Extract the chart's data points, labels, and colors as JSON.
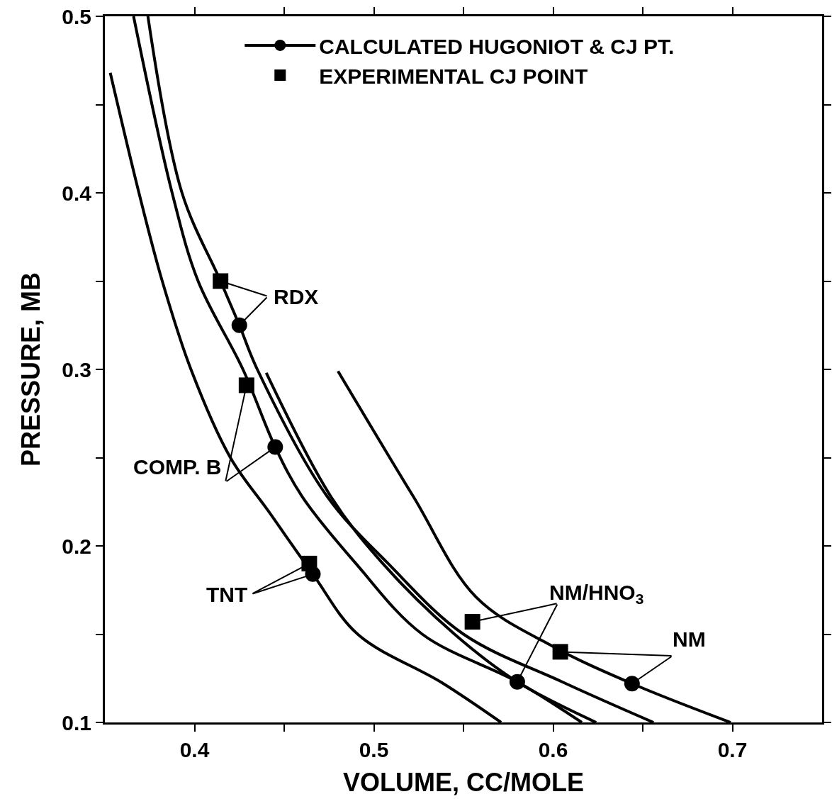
{
  "chart_data": {
    "type": "line",
    "xlabel": "VOLUME, CC/MOLE",
    "ylabel": "PRESSURE, MB",
    "xlim": [
      0.35,
      0.75
    ],
    "ylim": [
      0.1,
      0.5
    ],
    "xticks": [
      0.4,
      {
        "value": 0.45,
        "label": null
      },
      0.5,
      {
        "value": 0.55,
        "label": null
      },
      0.6,
      {
        "value": 0.65,
        "label": null
      },
      0.7
    ],
    "yticks": [
      0.1,
      {
        "value": 0.15,
        "label": null
      },
      0.2,
      {
        "value": 0.25,
        "label": null
      },
      0.3,
      {
        "value": 0.35,
        "label": null
      },
      0.4,
      {
        "value": 0.45,
        "label": null
      },
      0.5
    ],
    "grid": false,
    "legend": "top right",
    "marker": "none",
    "line_style": "solid",
    "series": [
      {
        "type": "line",
        "color": "#000000",
        "x": [
          0.353,
          0.369,
          0.382,
          0.398,
          0.42,
          0.441,
          0.466,
          0.491,
          0.538,
          0.571
        ],
        "values": [
          0.468,
          0.4,
          0.35,
          0.3,
          0.25,
          0.22,
          0.184,
          0.15,
          0.1225,
          0.1
        ]
      },
      {
        "type": "line",
        "color": "#000000",
        "x": [
          0.366,
          0.3875,
          0.402,
          0.427,
          0.445,
          0.46,
          0.49,
          0.527,
          0.58,
          0.616
        ],
        "values": [
          0.5,
          0.4,
          0.35,
          0.3,
          0.256,
          0.228,
          0.19,
          0.15,
          0.123,
          0.1
        ]
      },
      {
        "type": "line",
        "color": "#000000",
        "x": [
          0.374,
          0.393,
          0.4145,
          0.425,
          0.435,
          0.474,
          0.508,
          0.55,
          0.605,
          0.656
        ],
        "values": [
          0.5,
          0.4,
          0.35,
          0.325,
          0.3,
          0.228,
          0.19,
          0.15,
          0.123,
          0.1
        ]
      },
      {
        "type": "line",
        "color": "#000000",
        "x": [
          0.44,
          0.476,
          0.505,
          0.545,
          0.58,
          0.624
        ],
        "values": [
          0.298,
          0.228,
          0.19,
          0.15,
          0.123,
          0.1
        ]
      },
      {
        "type": "line",
        "color": "#000000",
        "x": [
          0.48,
          0.522,
          0.557,
          0.6,
          0.644,
          0.699
        ],
        "values": [
          0.299,
          0.228,
          0.171,
          0.143,
          0.122,
          0.1
        ]
      },
      {
        "type": "scatter",
        "name": "CALCULATED HUGONIOT & CJ PT.",
        "color": "#000000",
        "marker": "circle",
        "line_style": "solid",
        "x": [
          0.425,
          0.445,
          0.466,
          0.58,
          0.644
        ],
        "values": [
          0.325,
          0.256,
          0.184,
          0.123,
          0.122
        ]
      },
      {
        "type": "scatter",
        "name": "EXPERIMENTAL CJ POINT",
        "color": "#000000",
        "marker": "square",
        "x": [
          0.4145,
          0.429,
          0.464,
          0.555,
          0.604
        ],
        "values": [
          0.35,
          0.291,
          0.19,
          0.157,
          0.14
        ]
      }
    ],
    "annotations": [
      {
        "text": "RDX",
        "x": 0.425,
        "y": 0.325
      },
      {
        "text": "COMP. B",
        "x": 0.445,
        "y": 0.256
      },
      {
        "text": "TNT",
        "x": 0.466,
        "y": 0.184
      },
      {
        "text": "NM/HNO$_{3}$",
        "x": 0.58,
        "y": 0.123
      },
      {
        "text": "NM",
        "x": 0.644,
        "y": 0.122
      }
    ]
  }
}
